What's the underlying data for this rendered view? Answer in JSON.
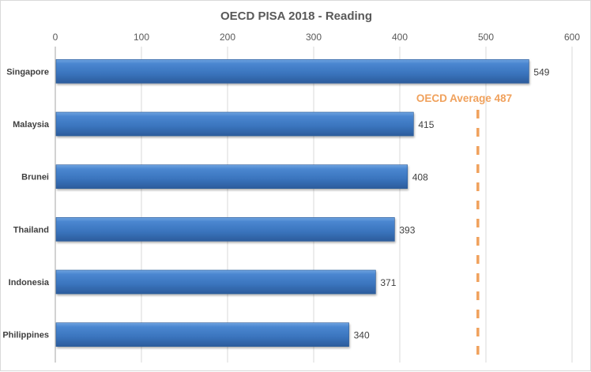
{
  "chart_data": {
    "type": "bar",
    "orientation": "horizontal",
    "title": "OECD PISA 2018 - Reading",
    "xlabel": "",
    "ylabel": "",
    "xlim": [
      0,
      600
    ],
    "x_ticks": [
      0,
      100,
      200,
      300,
      400,
      500,
      600
    ],
    "x_tick_labels": [
      "0",
      "100",
      "200",
      "300",
      "400",
      "500",
      "600"
    ],
    "x_axis_position": "top",
    "grid": true,
    "legend": "none",
    "categories": [
      "Singapore",
      "Malaysia",
      "Brunei",
      "Thailand",
      "Indonesia",
      "Philippines"
    ],
    "values": [
      549,
      415,
      408,
      393,
      371,
      340
    ],
    "data_labels": [
      "549",
      "415",
      "408",
      "393",
      "371",
      "340"
    ],
    "bar_color": "#3a78c4",
    "reference_line": {
      "label": "OECD Average 487",
      "value": 487,
      "style": "dashed",
      "color": "#f0a15c"
    }
  }
}
